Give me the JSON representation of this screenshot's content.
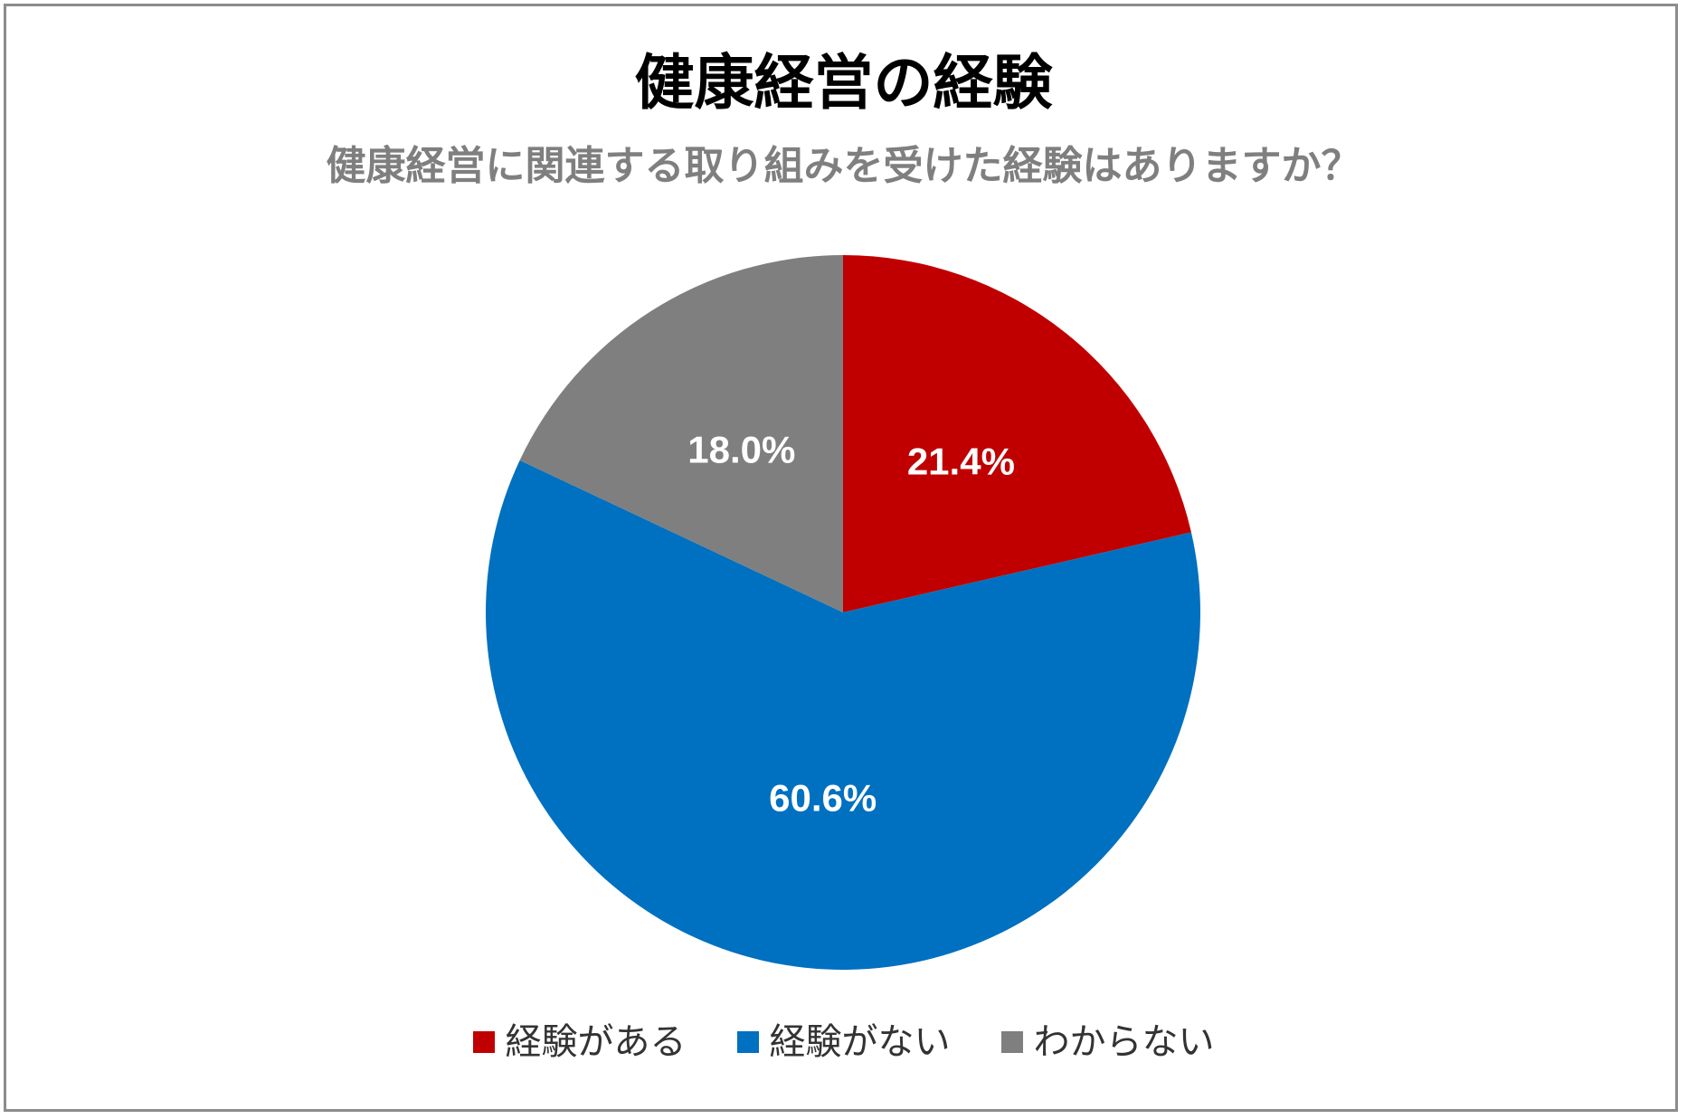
{
  "chart_data": {
    "type": "pie",
    "title": "健康経営の経験",
    "subtitle": "健康経営に関連する取り組みを受けた経験はありますか？",
    "categories": [
      "経験がある",
      "経験がない",
      "わからない"
    ],
    "values": [
      21.4,
      60.6,
      18.0
    ],
    "data_labels": [
      "21.4%",
      "60.6%",
      "18.0%"
    ],
    "colors": [
      "#c00000",
      "#0070c0",
      "#7f7f7f"
    ],
    "start": "12 o'clock, clockwise",
    "legend_position": "bottom"
  }
}
